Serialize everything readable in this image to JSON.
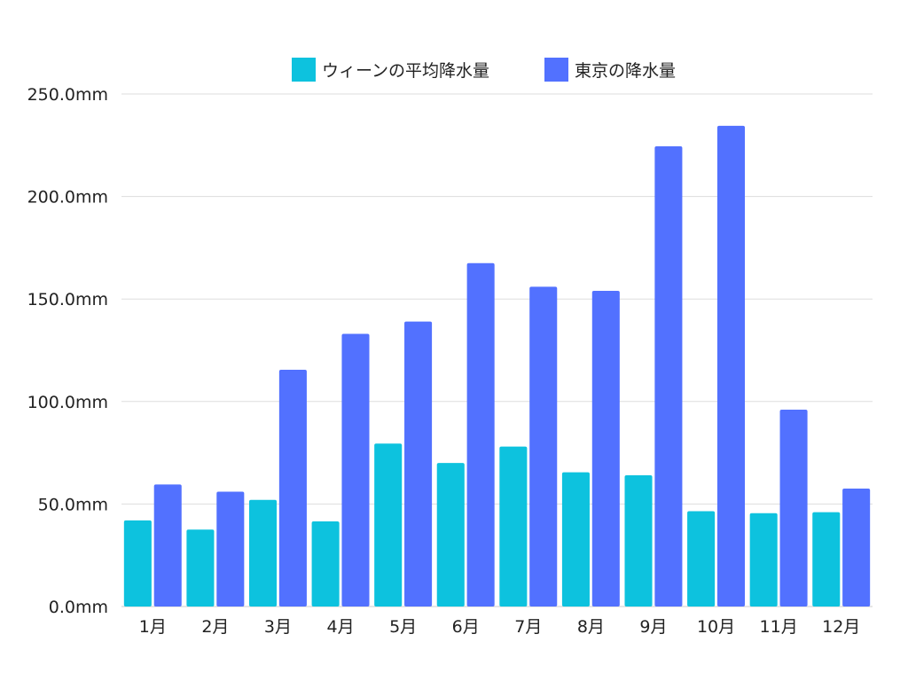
{
  "chart_data": {
    "type": "bar",
    "categories": [
      "1月",
      "2月",
      "3月",
      "4月",
      "5月",
      "6月",
      "7月",
      "8月",
      "9月",
      "10月",
      "11月",
      "12月"
    ],
    "series": [
      {
        "name": "ウィーンの平均降水量",
        "color": "#0dc2de",
        "values": [
          42,
          37.5,
          52,
          41.5,
          79.5,
          70,
          78,
          65.5,
          64,
          46.5,
          45.5,
          46
        ]
      },
      {
        "name": "東京の降水量",
        "color": "#5271ff",
        "values": [
          59.5,
          56,
          115.5,
          133,
          139,
          167.5,
          156,
          154,
          224.5,
          234.5,
          96,
          57.5
        ]
      }
    ],
    "y_ticks": [
      "0.0mm",
      "50.0mm",
      "100.0mm",
      "150.0mm",
      "200.0mm",
      "250.0mm"
    ],
    "ylim": [
      0,
      250
    ],
    "grid": true,
    "legend_position": "top-center"
  }
}
